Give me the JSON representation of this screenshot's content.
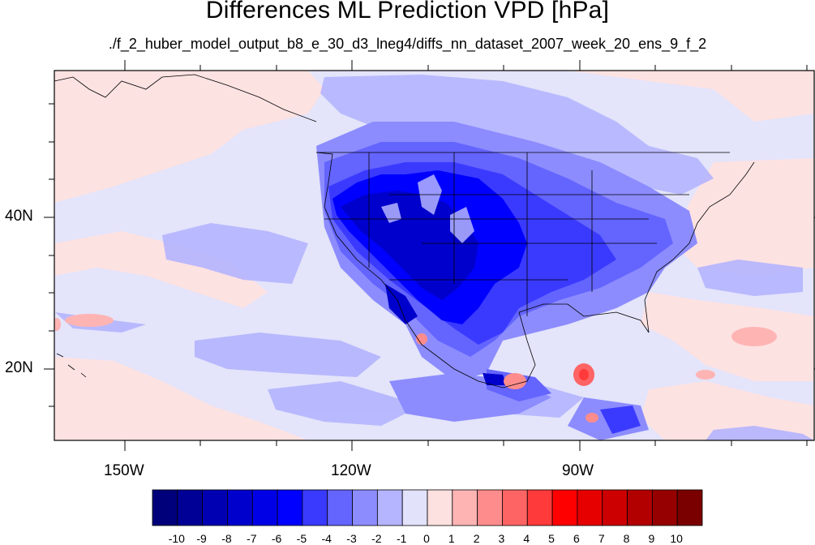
{
  "title": "Differences ML Prediction VPD [hPa]",
  "subtitle": "./f_2_huber_model_output_b8_e_30_d3_lneg4/diffs_nn_dataset_2007_week_20_ens_9_f_2",
  "map": {
    "lon_labels": [
      "150W",
      "120W",
      "90W"
    ],
    "lat_labels": [
      "40N",
      "20N"
    ]
  },
  "colorbar": {
    "labels": [
      "-10",
      "-9",
      "-8",
      "-7",
      "-6",
      "-5",
      "-4",
      "-3",
      "-2",
      "-1",
      "0",
      "1",
      "2",
      "3",
      "4",
      "5",
      "6",
      "7",
      "8",
      "9",
      "10"
    ],
    "colors": [
      "#00007a",
      "#000096",
      "#0000b2",
      "#0000cc",
      "#0000e6",
      "#0000ff",
      "#3a3aff",
      "#6464ff",
      "#8c8cff",
      "#b4b4ff",
      "#e2e2fb",
      "#fde0e0",
      "#ffb4b4",
      "#ff8c8c",
      "#ff6464",
      "#ff3a3a",
      "#ff0000",
      "#e60000",
      "#cc0000",
      "#b20000",
      "#960000",
      "#7a0000"
    ]
  }
}
